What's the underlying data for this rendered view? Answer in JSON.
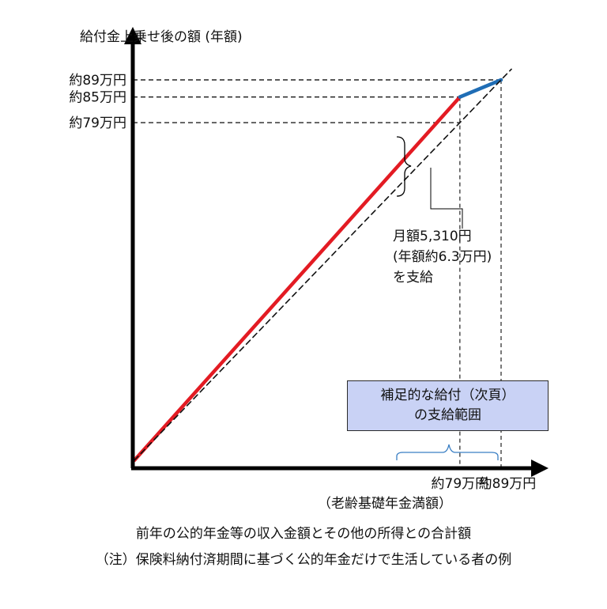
{
  "chart_data": {
    "type": "line",
    "ylabel": "給付金上乗せ後の額 (年額)",
    "x_tick_labels": [
      "約79万円",
      "約89万円"
    ],
    "x_tick_values": [
      79,
      89
    ],
    "x_tick_note": "（老齢基礎年金満額）",
    "y_tick_labels": [
      "約79万円",
      "約85万円",
      "約89万円"
    ],
    "y_tick_values": [
      79,
      85,
      89
    ],
    "xlim": [
      0,
      89
    ],
    "ylim": [
      0,
      89
    ],
    "series": [
      {
        "color": "#e31b23",
        "style": "solid",
        "x": [
          0,
          79
        ],
        "y": [
          0,
          85
        ]
      },
      {
        "color": "#1f6db5",
        "style": "solid",
        "x": [
          79,
          89
        ],
        "y": [
          85,
          89
        ]
      },
      {
        "color": "#111111",
        "style": "dashed",
        "x": [
          0,
          89
        ],
        "y": [
          0,
          89
        ]
      }
    ],
    "annotations": {
      "callout": [
        "月額5,310円",
        "(年額約6.3万円)",
        "を支給"
      ],
      "range_box": [
        "補足的な給付（次頁）",
        "の支給範囲"
      ],
      "range_box_color": "#c9d2f5"
    },
    "captions": [
      "前年の公的年金等の収入金額とその他の所得との合計額",
      "（注）保険料納付済期間に基づく公的年金だけで生活している者の例"
    ]
  }
}
